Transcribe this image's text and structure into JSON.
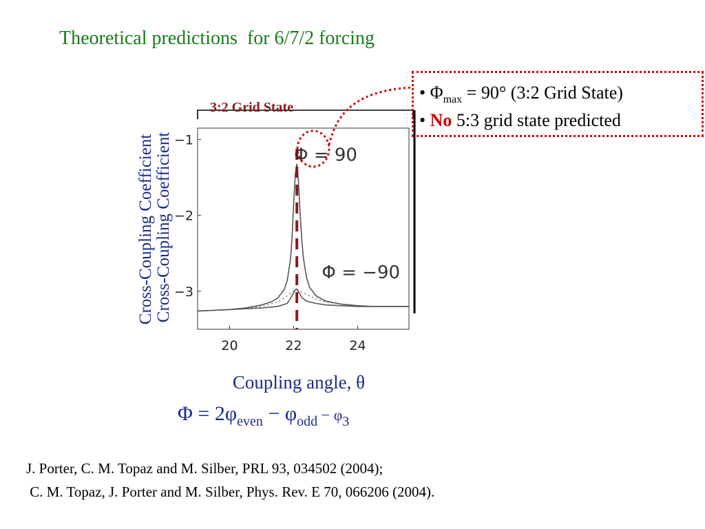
{
  "slide": {
    "title": "Theoretical predictions  for 6/7/2 forcing",
    "bullets": {
      "line1_prefix": "• Φ",
      "line1_sub": "max",
      "line1_suffix": " = 90°  (3:2 Grid State)",
      "line2_prefix": "•  ",
      "line2_bold": "No",
      "line2_suffix": " 5:3 grid state predicted"
    },
    "grid_state_label": "3:2 Grid State",
    "formula": {
      "lhs": "Φ = 2φ",
      "sub1": "even",
      "minus1": " − φ",
      "sub2": "odd",
      "minus2": " − φ",
      "sub3": "3"
    },
    "references": [
      "J. Porter, C. M. Topaz and M. Silber, PRL 93, 034502 (2004);",
      " C. M. Topaz, J. Porter and M. Silber, Phys. Rev. E 70, 066206 (2004)."
    ]
  },
  "colors": {
    "title": "#1a7a1a",
    "axis_text": "#1a2a8a",
    "highlight_red": "#cc0000",
    "dashed_line": "#8b1a1a",
    "curve": "#555555"
  },
  "chart_data": {
    "type": "line",
    "xlabel": "Coupling angle, θ",
    "ylabel": "Cross-Coupling Coefficient",
    "xlim": [
      19,
      25.6
    ],
    "ylim": [
      -3.5,
      -0.85
    ],
    "xticks": [
      20,
      22,
      24
    ],
    "yticks": [
      -1,
      -2,
      -3
    ],
    "xtick_labels": [
      "20",
      "22",
      "24"
    ],
    "ytick_labels": [
      "−1",
      "−2",
      "−3"
    ],
    "grid": false,
    "annotations": [
      {
        "text": "Φ = 90",
        "x": 23.0,
        "y": -1.28
      },
      {
        "text": "Φ = −90",
        "x": 24.1,
        "y": -2.83
      }
    ],
    "dashed_vline": {
      "x": 22.1
    },
    "series": [
      {
        "style": "solid",
        "x": [
          19.0,
          19.5,
          20.0,
          20.5,
          21.0,
          21.3,
          21.5,
          21.7,
          21.8,
          21.9,
          21.95,
          22.0,
          22.05,
          22.1,
          22.15,
          22.2,
          22.25,
          22.3,
          22.4,
          22.5,
          22.7,
          23.0,
          23.5,
          24.0,
          24.5,
          25.0,
          25.6
        ],
        "y": [
          -3.26,
          -3.25,
          -3.24,
          -3.22,
          -3.18,
          -3.14,
          -3.09,
          -2.98,
          -2.86,
          -2.58,
          -2.3,
          -1.85,
          -1.45,
          -1.32,
          -1.55,
          -1.95,
          -2.3,
          -2.55,
          -2.82,
          -2.95,
          -3.06,
          -3.13,
          -3.17,
          -3.19,
          -3.2,
          -3.2,
          -3.2
        ]
      },
      {
        "style": "solid",
        "x": [
          19.0,
          19.5,
          20.0,
          20.5,
          21.0,
          21.5,
          21.8,
          21.95,
          22.05,
          22.1,
          22.15,
          22.25,
          22.4,
          22.7,
          23.0,
          23.5,
          24.0,
          24.5,
          25.0,
          25.6
        ],
        "y": [
          -3.26,
          -3.25,
          -3.24,
          -3.23,
          -3.22,
          -3.2,
          -3.16,
          -3.06,
          -2.98,
          -2.97,
          -3.0,
          -3.08,
          -3.13,
          -3.16,
          -3.18,
          -3.19,
          -3.2,
          -3.2,
          -3.2,
          -3.2
        ]
      },
      {
        "style": "dotted",
        "x": [
          19.0,
          20.0,
          21.0,
          21.5,
          21.8,
          22.0,
          22.1,
          22.2,
          22.4,
          22.7,
          23.0,
          23.5,
          24.0,
          24.5,
          25.0,
          25.6
        ],
        "y": [
          -3.26,
          -3.24,
          -3.2,
          -3.14,
          -3.06,
          -3.0,
          -2.99,
          -3.0,
          -3.04,
          -3.1,
          -3.14,
          -3.17,
          -3.19,
          -3.2,
          -3.2,
          -3.2
        ]
      }
    ]
  }
}
